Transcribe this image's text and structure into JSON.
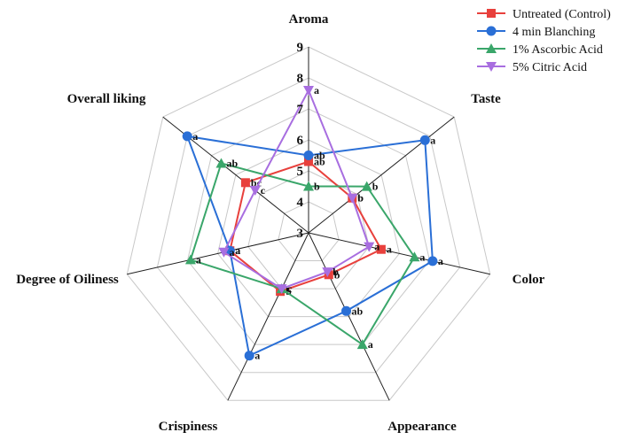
{
  "chart_data": {
    "type": "radar",
    "axes": [
      "Aroma",
      "Taste",
      "Color",
      "Appearance",
      "Crispiness",
      "Degree of Oiliness",
      "Overall liking"
    ],
    "rmin": 3,
    "rmax": 9,
    "ticks": [
      "3",
      "4",
      "5",
      "6",
      "7",
      "8",
      "9"
    ],
    "grid": true,
    "legend_position": "top-right",
    "series": [
      {
        "name": "Untreated (Control)",
        "color": "#e8403c",
        "marker": "square",
        "values": [
          5.3,
          4.8,
          5.4,
          4.5,
          5.1,
          5.6,
          5.6
        ],
        "significance": [
          "ab",
          "b",
          "a",
          "b",
          "b",
          "a",
          "bc"
        ]
      },
      {
        "name": "4 min Blanching",
        "color": "#2a6fd6",
        "marker": "circle",
        "values": [
          5.5,
          7.8,
          7.1,
          5.8,
          7.4,
          5.6,
          8.0
        ],
        "significance": [
          "ab",
          "a",
          "a",
          "ab",
          "a",
          "a",
          "a"
        ]
      },
      {
        "name": "1% Ascorbic Acid",
        "color": "#3aa66a",
        "marker": "triangle",
        "values": [
          4.5,
          5.4,
          6.5,
          7.0,
          5.0,
          6.9,
          6.6
        ],
        "significance": [
          "b",
          "b",
          "a",
          "a",
          "c",
          "a",
          "ab"
        ]
      },
      {
        "name": "5% Citric Acid",
        "color": "#a86ee0",
        "marker": "triangle-down",
        "values": [
          7.6,
          4.8,
          5.0,
          4.4,
          5.0,
          5.8,
          5.2
        ],
        "significance": [
          "a",
          "b",
          "a",
          "b",
          "c",
          "a",
          "c"
        ]
      }
    ]
  }
}
